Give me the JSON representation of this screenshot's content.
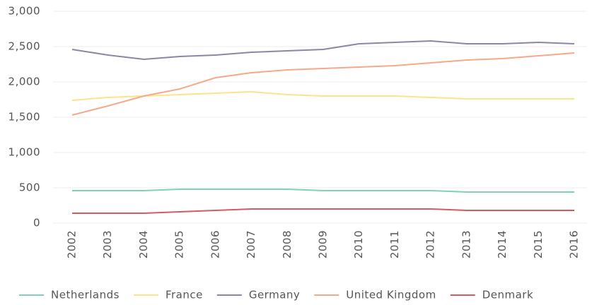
{
  "chart_data": {
    "type": "line",
    "categories": [
      "2002",
      "2003",
      "2004",
      "2005",
      "2006",
      "2007",
      "2008",
      "2009",
      "2010",
      "2011",
      "2012",
      "2013",
      "2014",
      "2015",
      "2016"
    ],
    "series": [
      {
        "name": "Netherlands",
        "color": "#7fd3b4",
        "values": [
          460,
          460,
          460,
          480,
          480,
          480,
          480,
          460,
          460,
          460,
          460,
          440,
          440,
          440,
          440
        ]
      },
      {
        "name": "France",
        "color": "#fde38a",
        "values": [
          1740,
          1780,
          1800,
          1820,
          1840,
          1860,
          1820,
          1800,
          1800,
          1800,
          1780,
          1760,
          1760,
          1760,
          1760
        ]
      },
      {
        "name": "Germany",
        "color": "#8b87a3",
        "values": [
          2460,
          2380,
          2320,
          2360,
          2380,
          2420,
          2440,
          2460,
          2540,
          2560,
          2580,
          2540,
          2540,
          2560,
          2540
        ]
      },
      {
        "name": "United Kingdom",
        "color": "#f5a98a",
        "values": [
          1530,
          1660,
          1800,
          1900,
          2060,
          2130,
          2170,
          2190,
          2210,
          2230,
          2270,
          2310,
          2330,
          2370,
          2410
        ]
      },
      {
        "name": "Denmark",
        "color": "#d9595e",
        "values": [
          140,
          140,
          140,
          160,
          180,
          200,
          200,
          200,
          200,
          200,
          200,
          180,
          180,
          180,
          180
        ]
      }
    ],
    "ylim": [
      0,
      3000
    ],
    "yticks": [
      0,
      500,
      {
        "value": 1000,
        "label": "1,000"
      },
      {
        "value": 1500,
        "label": "1,500"
      },
      {
        "value": 2000,
        "label": "2,000"
      },
      {
        "value": 2500,
        "label": "2,500"
      },
      {
        "value": 3000,
        "label": "3,000"
      }
    ],
    "grid": true,
    "legend": "bottom"
  }
}
